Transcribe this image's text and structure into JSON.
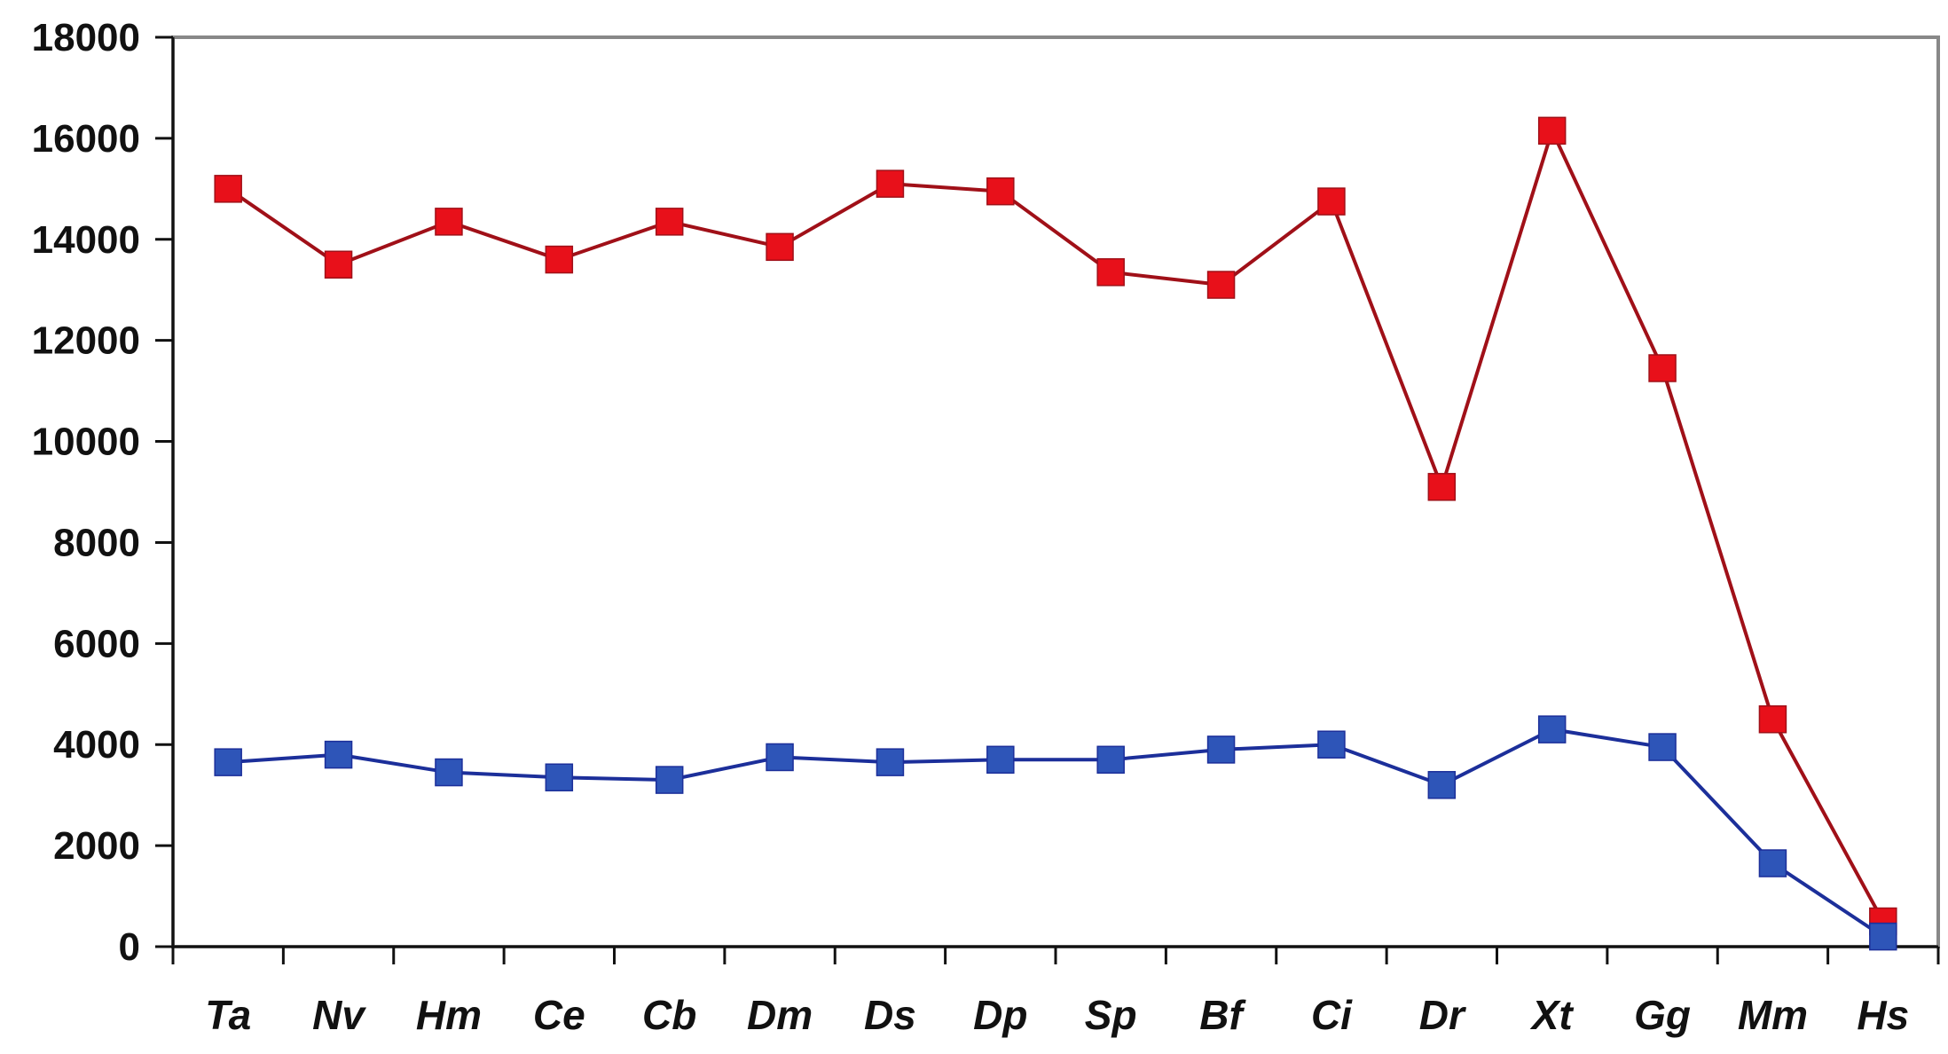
{
  "chart_data": {
    "type": "line",
    "title": "",
    "xlabel": "",
    "ylabel": "",
    "categories": [
      "Ta",
      "Nv",
      "Hm",
      "Ce",
      "Cb",
      "Dm",
      "Ds",
      "Dp",
      "Sp",
      "Bf",
      "Ci",
      "Dr",
      "Xt",
      "Gg",
      "Mm",
      "Hs"
    ],
    "yticks": [
      "0",
      "2000",
      "4000",
      "6000",
      "8000",
      "10000",
      "12000",
      "14000",
      "16000",
      "18000"
    ],
    "ylim": [
      0,
      18000
    ],
    "grid": false,
    "legend": "none",
    "series": [
      {
        "color": "#e8101a",
        "line_color": "#a01018",
        "marker": "square",
        "values": [
          15000,
          13500,
          14350,
          13600,
          14350,
          13850,
          15100,
          14950,
          13350,
          13100,
          14750,
          9100,
          16150,
          11450,
          4500,
          500
        ]
      },
      {
        "color": "#2e55b8",
        "line_color": "#1c2f9a",
        "marker": "square",
        "values": [
          3650,
          3800,
          3450,
          3350,
          3300,
          3750,
          3650,
          3700,
          3700,
          3900,
          4000,
          3200,
          4300,
          3950,
          1650,
          200
        ]
      }
    ]
  }
}
